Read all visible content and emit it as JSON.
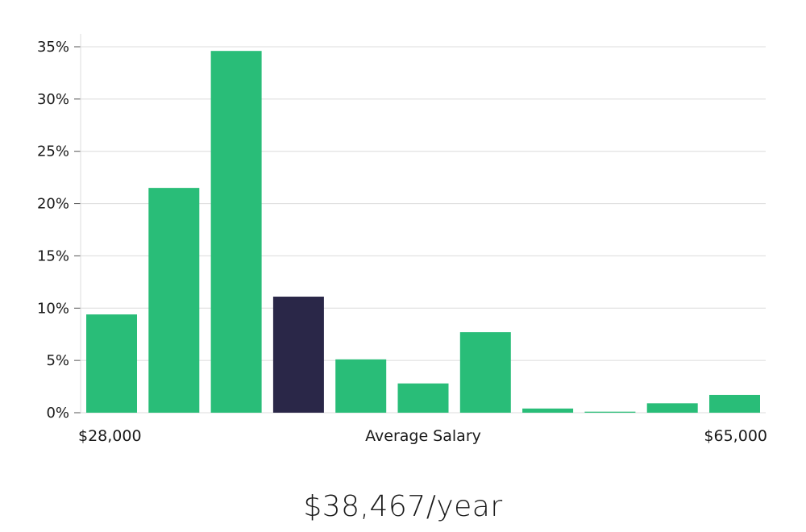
{
  "chart_data": {
    "type": "bar",
    "xlabel": "Average Salary",
    "x_range_labels": [
      "$28,000",
      "$65,000"
    ],
    "ylim": [
      0,
      35
    ],
    "yticks": [
      "0%",
      "5%",
      "10%",
      "15%",
      "20%",
      "25%",
      "30%",
      "35%"
    ],
    "ytick_values": [
      0,
      5,
      10,
      15,
      20,
      25,
      30,
      35
    ],
    "grid": true,
    "values": [
      9.4,
      21.5,
      34.6,
      11.1,
      5.1,
      2.8,
      7.7,
      0.4,
      0.1,
      0.9,
      1.7
    ],
    "highlight_index": 3,
    "colors": {
      "bar": "#29bd78",
      "highlight": "#2a2748",
      "grid": "#dcdcdc",
      "axis": "#555555"
    }
  },
  "salary": {
    "value": "$38,467/year"
  }
}
